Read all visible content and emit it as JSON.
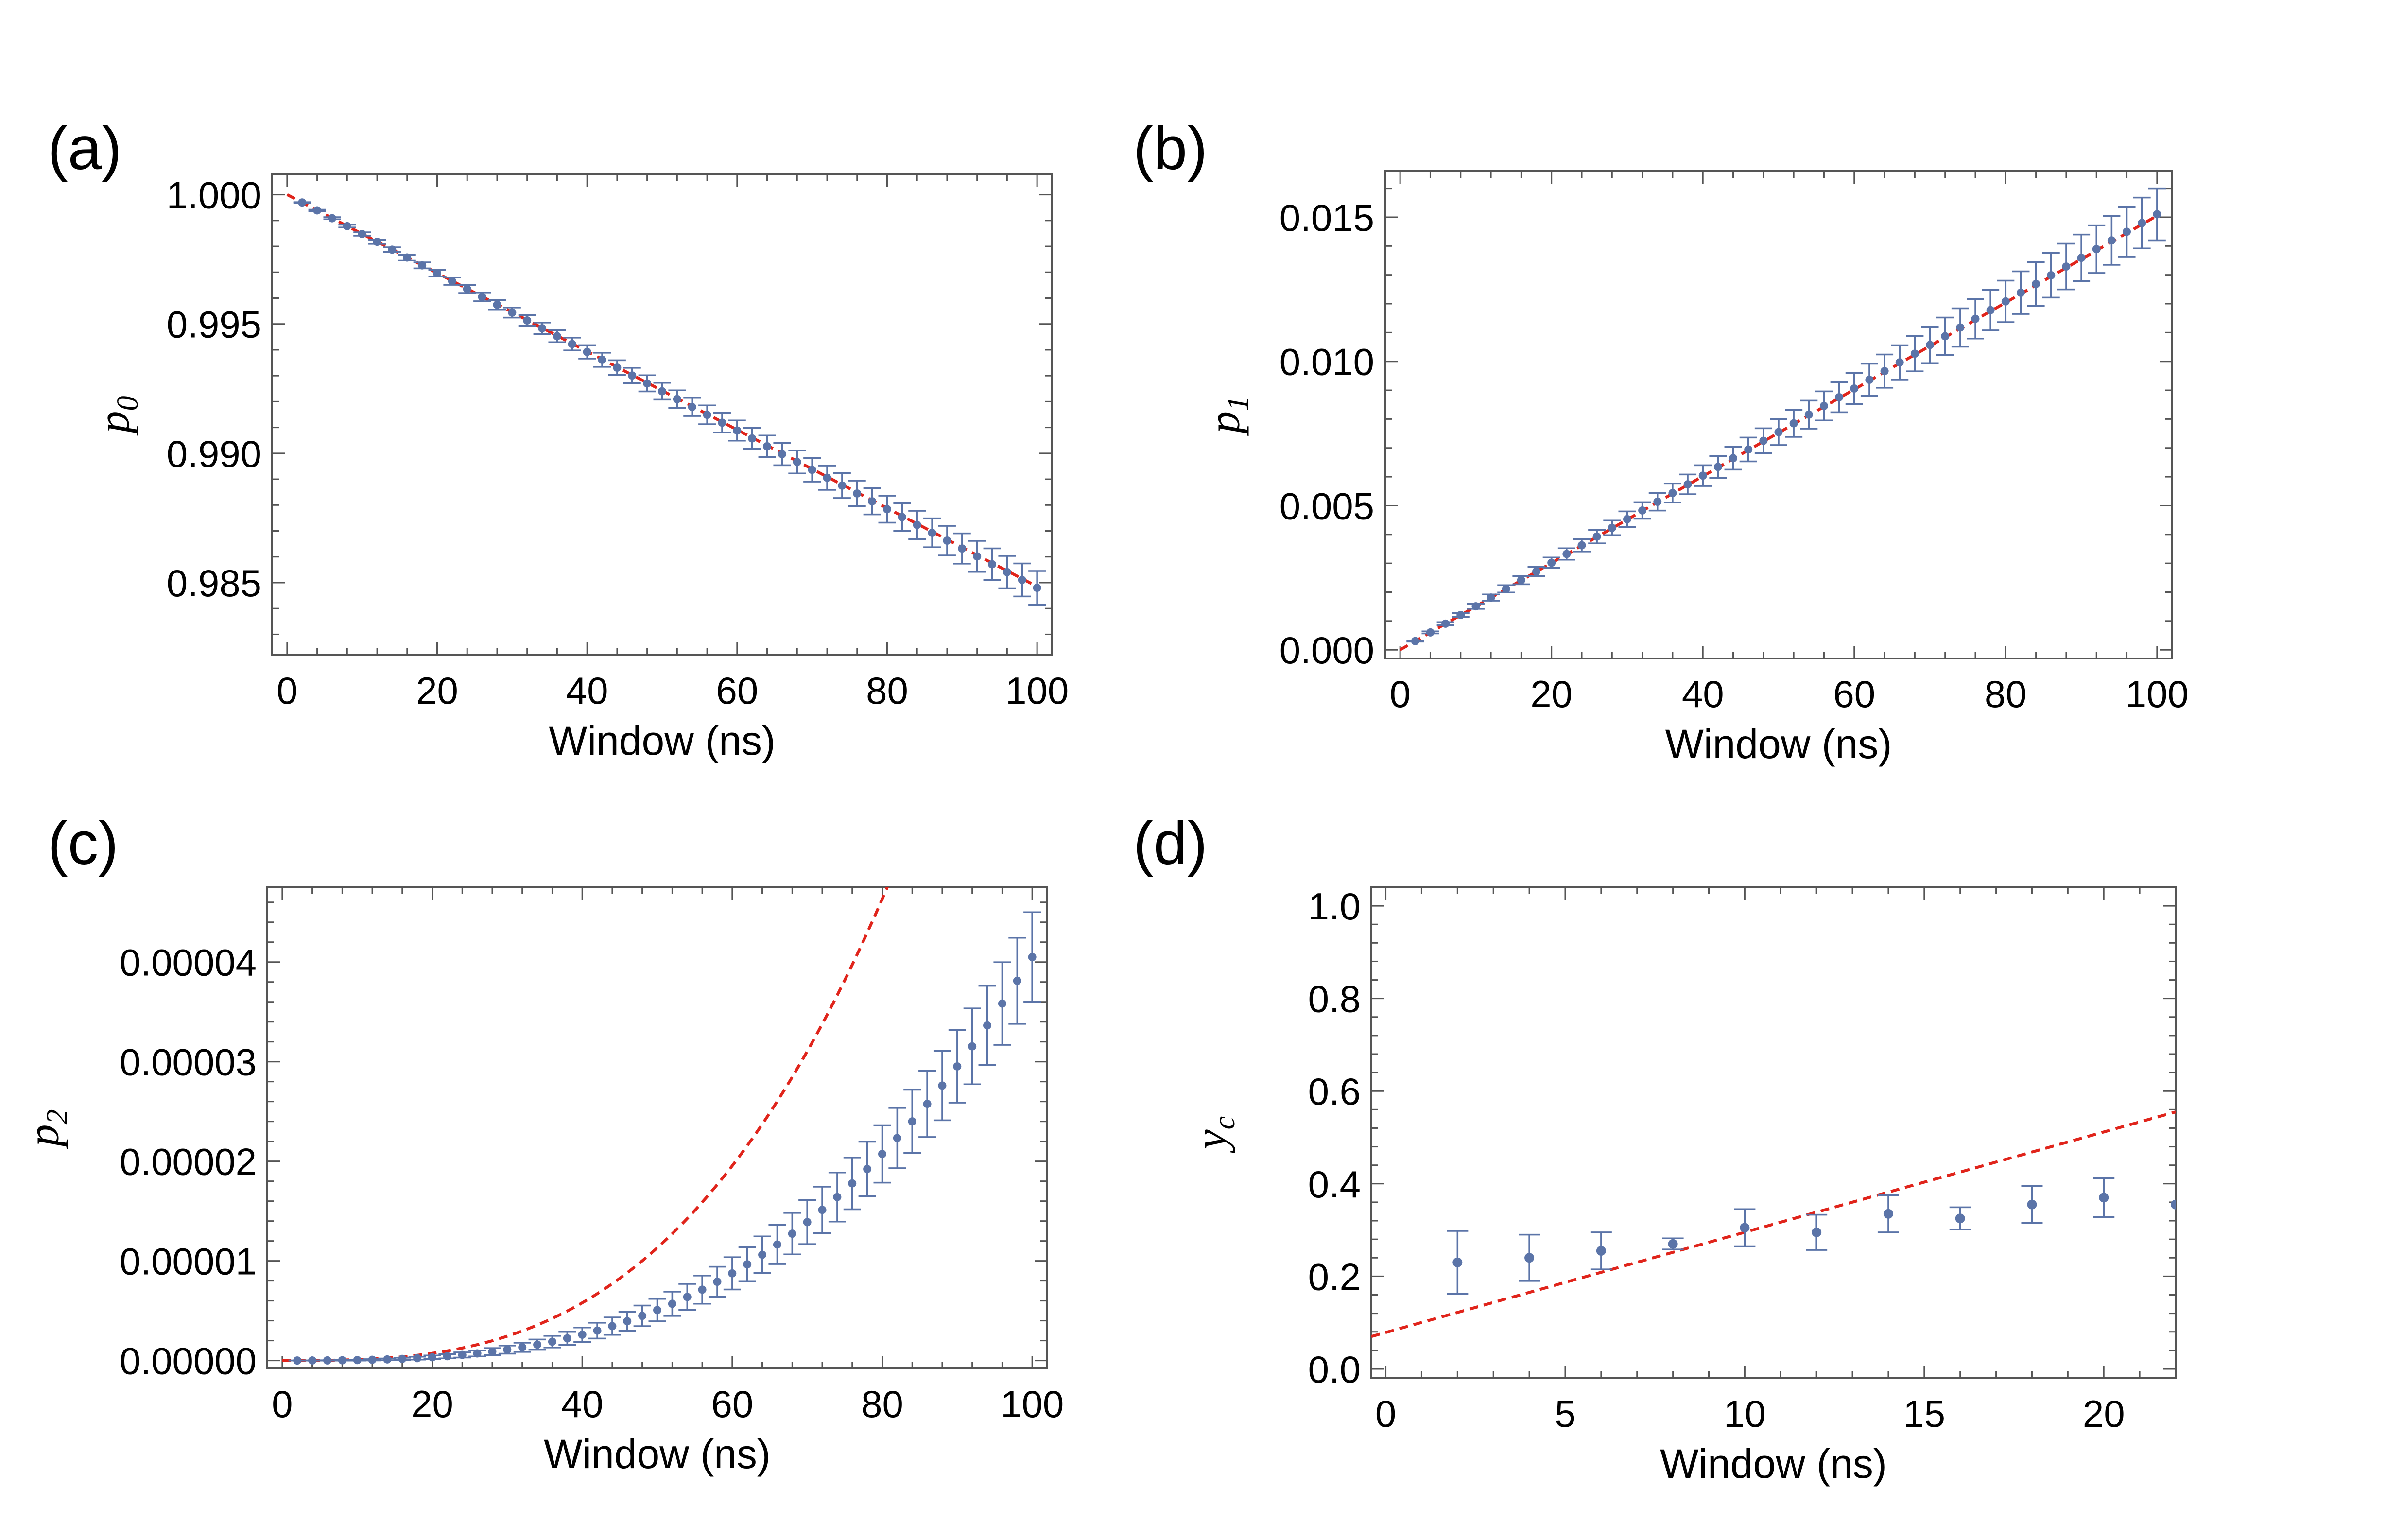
{
  "chart_data": [
    {
      "id": "a",
      "type": "scatter",
      "panel_label": "(a)",
      "xlabel": "Window (ns)",
      "ylabel": "p",
      "ylabel_sub": "0",
      "xlim": [
        -2,
        102
      ],
      "ylim": [
        0.9822,
        1.0008
      ],
      "xticks": [
        0,
        20,
        40,
        60,
        80,
        100
      ],
      "yticks": [
        0.985,
        0.99,
        0.995,
        1.0
      ],
      "ytick_labels": [
        "0.985",
        "0.990",
        "0.995",
        "1.000"
      ],
      "points": {
        "x_start": 2,
        "x_step": 2,
        "count": 50,
        "y_at_x0": 1.0,
        "slope": -0.000152,
        "err_at_x100": 0.00065,
        "color": "#5b74a8"
      },
      "fit": {
        "style": "dashed",
        "color": "#e0241b",
        "x": [
          0,
          100
        ],
        "y": [
          1.0,
          0.98485
        ]
      }
    },
    {
      "id": "b",
      "type": "scatter",
      "panel_label": "(b)",
      "xlabel": "Window (ns)",
      "ylabel": "p",
      "ylabel_sub": "1",
      "xlim": [
        -2,
        102
      ],
      "ylim": [
        -0.0003,
        0.0166
      ],
      "xticks": [
        0,
        20,
        40,
        60,
        80,
        100
      ],
      "yticks": [
        0.0,
        0.005,
        0.01,
        0.015
      ],
      "ytick_labels": [
        "0.000",
        "0.005",
        "0.010",
        "0.015"
      ],
      "points": {
        "x_start": 2,
        "x_step": 2,
        "count": 50,
        "y_at_x0": 0.0,
        "slope": 0.000151,
        "err_at_x100": 0.0009,
        "color": "#5b74a8"
      },
      "fit": {
        "style": "dashed",
        "color": "#e0241b",
        "x": [
          0,
          100
        ],
        "y": [
          0.0,
          0.01505
        ]
      }
    },
    {
      "id": "c",
      "type": "scatter",
      "panel_label": "(c)",
      "xlabel": "Window (ns)",
      "ylabel": "p",
      "ylabel_sub": "2",
      "xlim": [
        -2,
        102
      ],
      "ylim": [
        -8e-07,
        4.75e-05
      ],
      "xticks": [
        0,
        20,
        40,
        60,
        80,
        100
      ],
      "yticks": [
        0.0,
        1e-05,
        2e-05,
        3e-05,
        4e-05
      ],
      "ytick_labels": [
        "0.00000",
        "0.00001",
        "0.00002",
        "0.00003",
        "0.00004"
      ],
      "points": {
        "x_start": 2,
        "x_step": 2,
        "count": 50,
        "cubic_coef": 4.05e-11,
        "err_at_x100": 4.5e-06,
        "color": "#5b74a8"
      },
      "fit": {
        "style": "dashed",
        "color": "#e0241b",
        "cubic_coef": 9.05e-11,
        "x_range": [
          0,
          81
        ]
      }
    },
    {
      "id": "d",
      "type": "scatter",
      "panel_label": "(d)",
      "xlabel": "Window (ns)",
      "ylabel": "y",
      "ylabel_sub": "c",
      "xlim": [
        -0.4,
        22
      ],
      "ylim": [
        -0.02,
        1.04
      ],
      "xticks": [
        0,
        5,
        10,
        15,
        20
      ],
      "yticks": [
        0.0,
        0.2,
        0.4,
        0.6,
        0.8,
        1.0
      ],
      "ytick_labels": [
        "0.0",
        "0.2",
        "0.4",
        "0.6",
        "0.8",
        "1.0"
      ],
      "x": [
        2,
        4,
        6,
        8,
        10,
        12,
        14,
        16,
        18,
        20,
        22
      ],
      "y": [
        0.23,
        0.24,
        0.255,
        0.27,
        0.305,
        0.295,
        0.335,
        0.325,
        0.355,
        0.37,
        0.355
      ],
      "err": [
        0.068,
        0.05,
        0.04,
        0.012,
        0.04,
        0.038,
        0.04,
        0.024,
        0.04,
        0.042,
        0.0
      ],
      "color": "#5b74a8",
      "fit": {
        "style": "dashed",
        "color": "#e0241b",
        "x": [
          -0.4,
          22
        ],
        "y": [
          0.07,
          0.555
        ]
      }
    }
  ]
}
